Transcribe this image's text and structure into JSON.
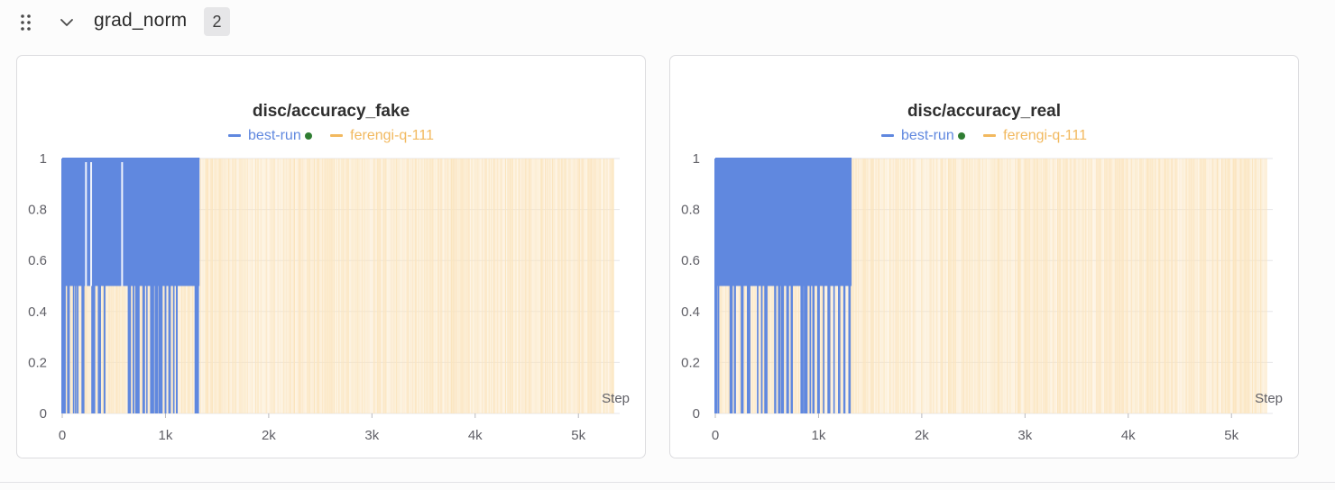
{
  "section": {
    "title": "grad_norm",
    "count": "2",
    "drag_icon": "drag-handle-icon",
    "collapse_icon": "chevron-down-icon"
  },
  "colors": {
    "best_run": "#6088df",
    "ferengi": "#f2b95f",
    "ferengi_fill": "#fbe4bd",
    "active_dot": "#2f7d32",
    "grid": "#e6e6e8",
    "tick_text": "#5f5f66"
  },
  "chart_data": [
    {
      "type": "line",
      "title": "disc/accuracy_fake",
      "xlabel": "Step",
      "ylabel": "",
      "xlim": [
        0,
        5400
      ],
      "ylim": [
        0,
        1
      ],
      "x_ticks": [
        0,
        1000,
        2000,
        3000,
        4000,
        5000
      ],
      "x_tick_labels": [
        "0",
        "1k",
        "2k",
        "3k",
        "4k",
        "5k"
      ],
      "y_ticks": [
        0,
        0.2,
        0.4,
        0.6,
        0.8,
        1
      ],
      "y_tick_labels": [
        "0",
        "0.2",
        "0.4",
        "0.6",
        "0.8",
        "1"
      ],
      "grid": true,
      "legend": "top-center",
      "series": [
        {
          "name": "best-run",
          "active": true,
          "values_set": [
            0,
            0.5,
            1
          ],
          "x_start": 0,
          "x_end": 1330,
          "band": [
            0.5,
            1
          ],
          "drop_to_zero_steps": [
            20,
            60,
            110,
            130,
            150,
            200,
            290,
            300,
            310,
            360,
            410,
            650,
            690,
            720,
            740,
            790,
            820,
            860,
            880,
            910,
            940,
            960,
            1000,
            1040,
            1080,
            1110,
            1290,
            1310
          ],
          "gaps_in_top_band": [
            230,
            280,
            580
          ]
        },
        {
          "name": "ferengi-q-111",
          "active": false,
          "values_set": [
            0,
            1
          ],
          "x_start": 0,
          "x_end": 5350
        }
      ]
    },
    {
      "type": "line",
      "title": "disc/accuracy_real",
      "xlabel": "Step",
      "ylabel": "",
      "xlim": [
        0,
        5400
      ],
      "ylim": [
        0,
        1
      ],
      "x_ticks": [
        0,
        1000,
        2000,
        3000,
        4000,
        5000
      ],
      "x_tick_labels": [
        "0",
        "1k",
        "2k",
        "3k",
        "4k",
        "5k"
      ],
      "y_ticks": [
        0,
        0.2,
        0.4,
        0.6,
        0.8,
        1
      ],
      "y_tick_labels": [
        "0",
        "0.2",
        "0.4",
        "0.6",
        "0.8",
        "1"
      ],
      "grid": true,
      "legend": "top-center",
      "series": [
        {
          "name": "best-run",
          "active": true,
          "values_set": [
            0,
            0.5,
            1
          ],
          "x_start": 0,
          "x_end": 1320,
          "band": [
            0.5,
            1
          ],
          "drop_to_zero_steps": [
            10,
            30,
            150,
            160,
            190,
            260,
            320,
            330,
            410,
            450,
            490,
            580,
            620,
            650,
            700,
            740,
            840,
            870,
            880,
            920,
            950,
            1000,
            1050,
            1100,
            1150,
            1200,
            1250,
            1300
          ],
          "gaps_in_top_band": []
        },
        {
          "name": "ferengi-q-111",
          "active": false,
          "values_set": [
            0,
            1
          ],
          "x_start": 0,
          "x_end": 5350
        }
      ]
    }
  ]
}
